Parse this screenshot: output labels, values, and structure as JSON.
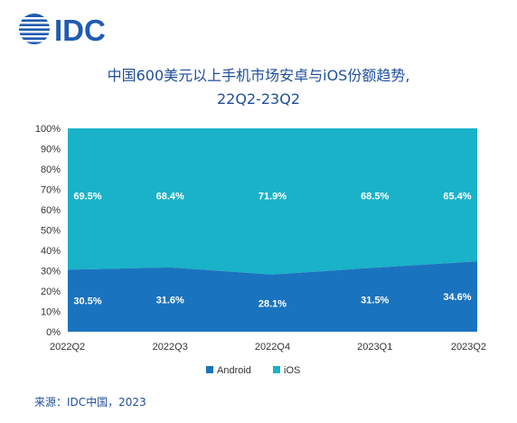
{
  "logo": {
    "text": "IDC"
  },
  "title": {
    "line1": "中国600美元以上手机市场安卓与iOS份额趋势,",
    "line2": "22Q2-23Q2"
  },
  "source": "来源：IDC中国，2023",
  "colors": {
    "android": "#1a73bf",
    "ios": "#19b2c9",
    "brand": "#1f4e9c"
  },
  "chart_data": {
    "type": "area",
    "stacked": true,
    "categories": [
      "2022Q2",
      "2022Q3",
      "2022Q4",
      "2023Q1",
      "2023Q2"
    ],
    "series": [
      {
        "name": "Android",
        "values": [
          30.5,
          31.6,
          28.1,
          31.5,
          34.6
        ],
        "labels": [
          "30.5%",
          "31.6%",
          "28.1%",
          "31.5%",
          "34.6%"
        ]
      },
      {
        "name": "iOS",
        "values": [
          69.5,
          68.4,
          71.9,
          68.5,
          65.4
        ],
        "labels": [
          "69.5%",
          "68.4%",
          "71.9%",
          "68.5%",
          "65.4%"
        ]
      }
    ],
    "y_ticks": [
      "0%",
      "10%",
      "20%",
      "30%",
      "40%",
      "50%",
      "60%",
      "70%",
      "80%",
      "90%",
      "100%"
    ],
    "ylim": [
      0,
      100
    ],
    "legend_position": "bottom-center",
    "grid": false
  }
}
